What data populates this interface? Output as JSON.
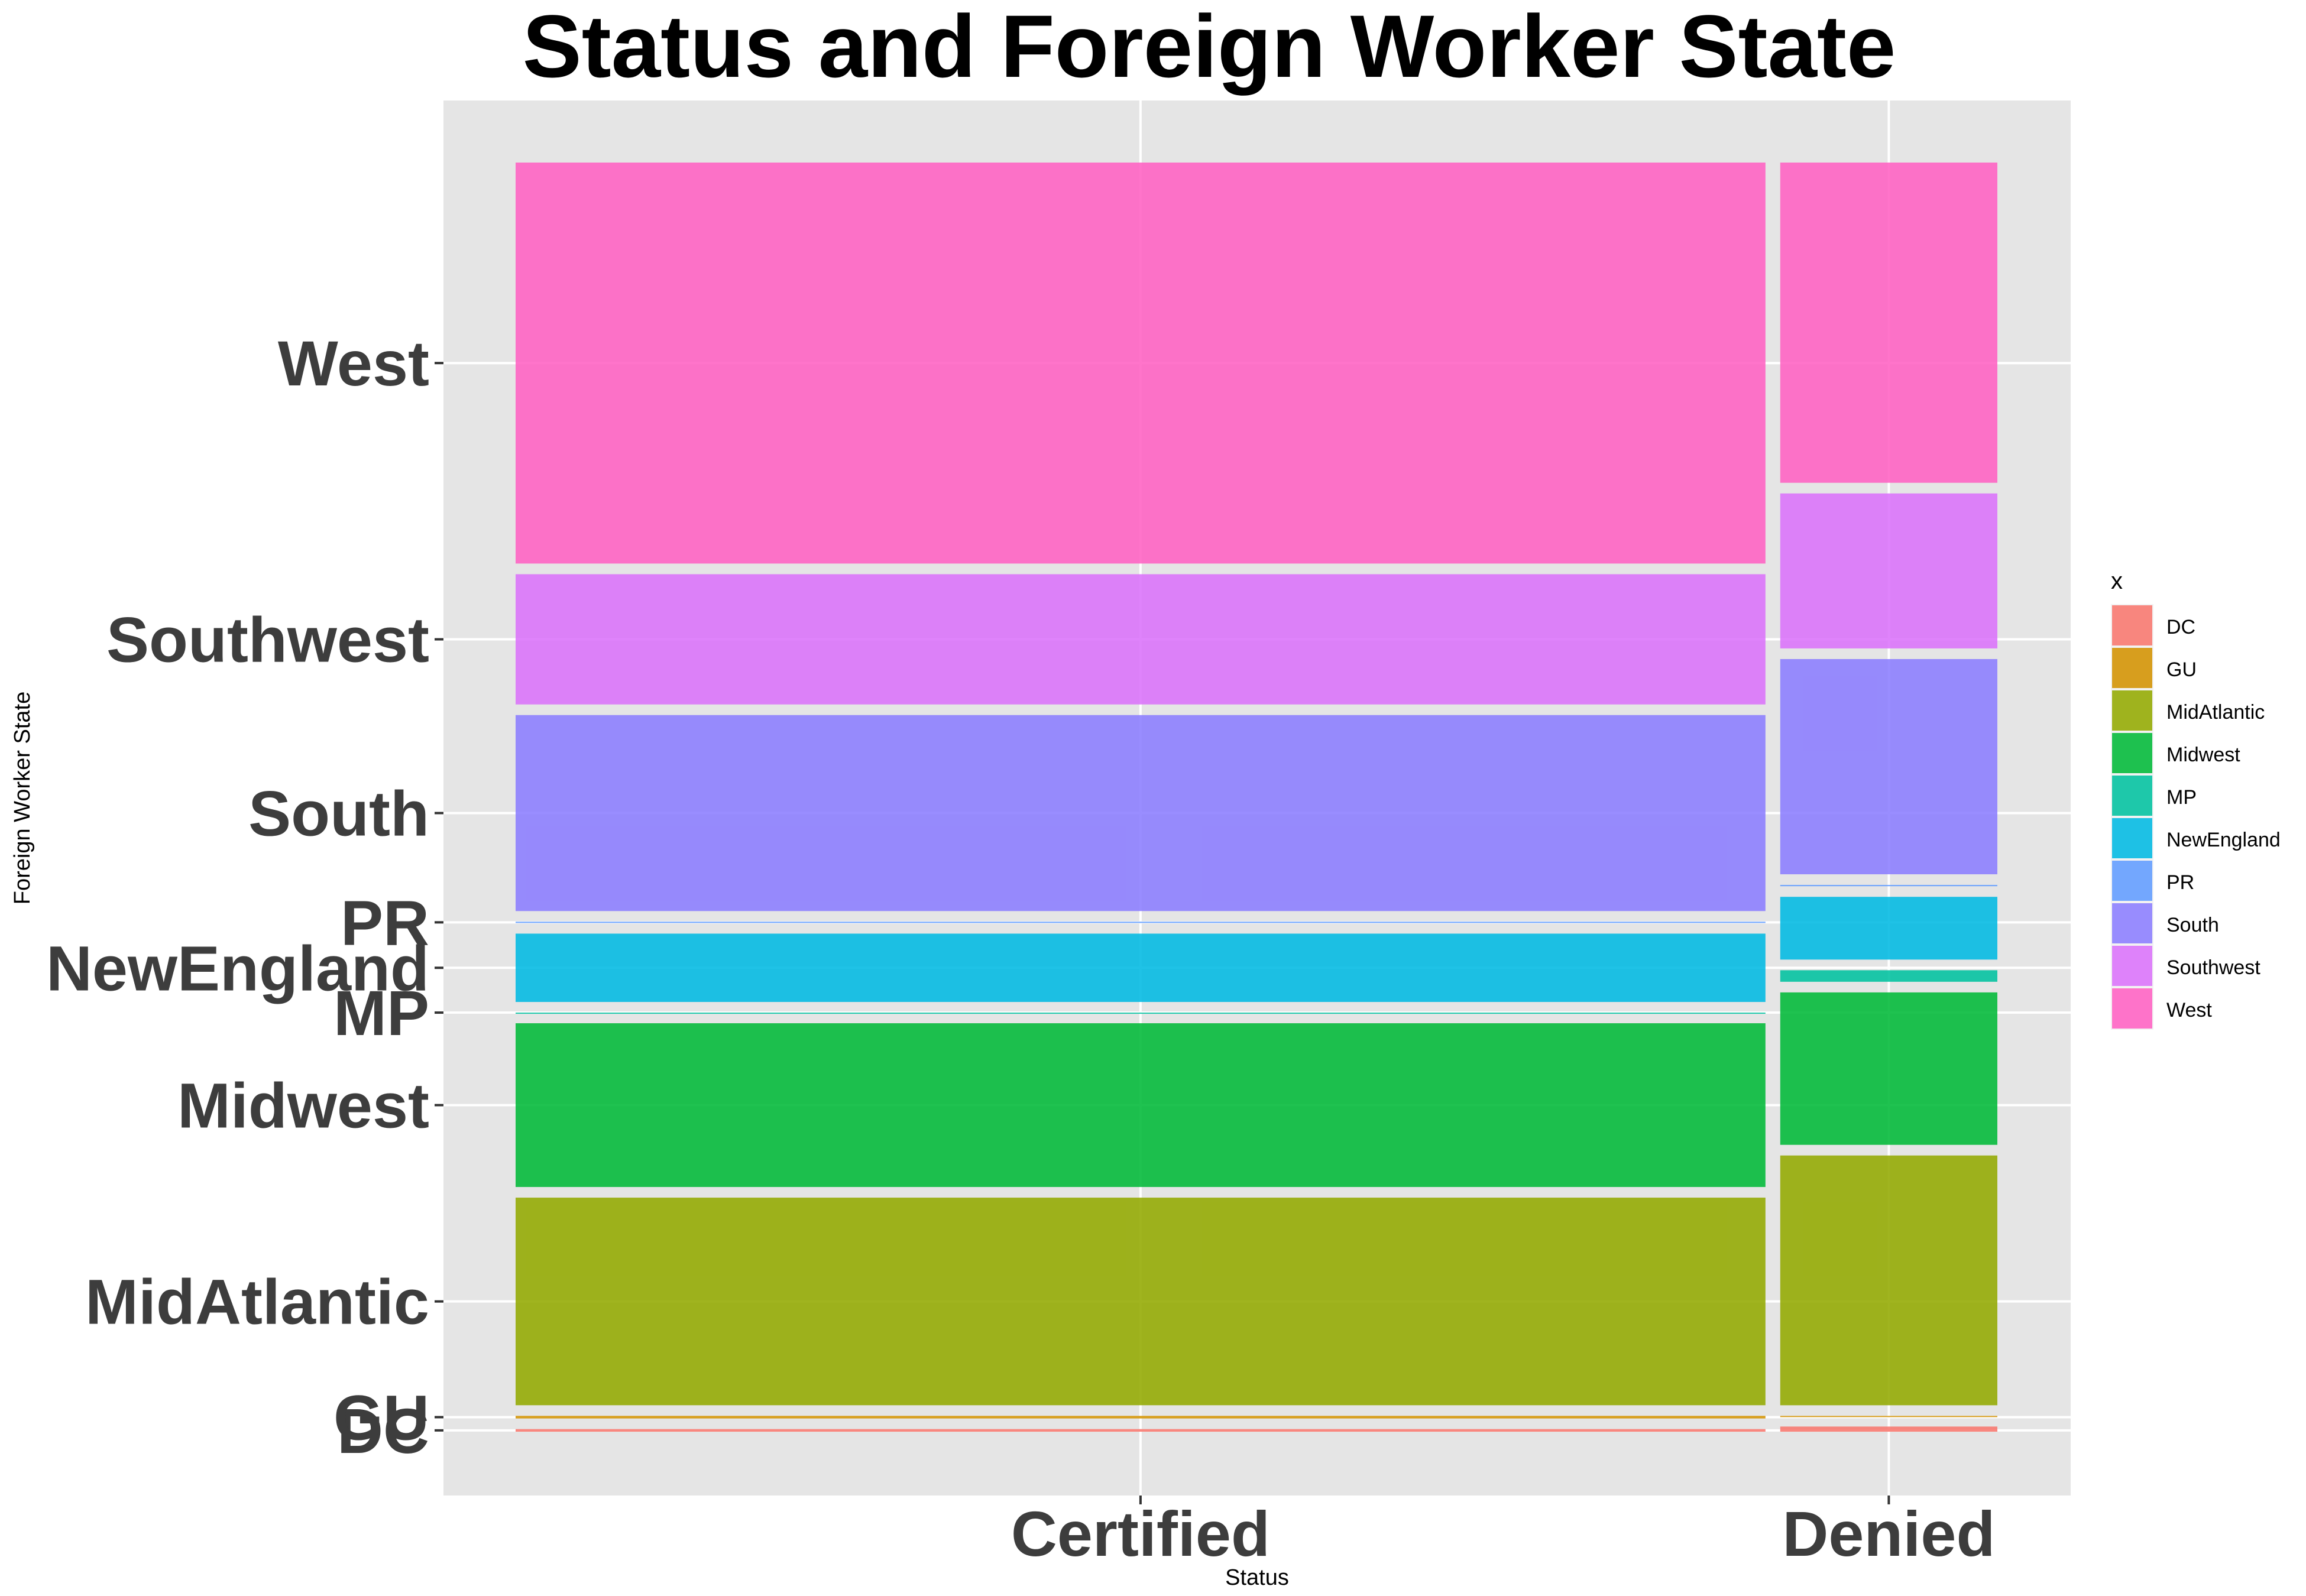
{
  "chart_data": {
    "type": "mosaic",
    "title": "Status and Foreign Worker State",
    "xlabel": "Status",
    "ylabel": "Foreign Worker State",
    "legend_title": "x",
    "legend_position": "right",
    "grid": true,
    "columns": [
      "Certified",
      "Denied"
    ],
    "column_shares": [
      0.852,
      0.148
    ],
    "categories": [
      "DC",
      "GU",
      "MidAtlantic",
      "Midwest",
      "MP",
      "NewEngland",
      "PR",
      "South",
      "Southwest",
      "West"
    ],
    "colors": {
      "DC": "#F8766D",
      "GU": "#D39200",
      "MidAtlantic": "#93AA00",
      "Midwest": "#00BA38",
      "MP": "#00C19F",
      "NewEngland": "#00B9E3",
      "PR": "#619CFF",
      "South": "#8B7DFF",
      "Southwest": "#DB72FB",
      "West": "#FF61C3"
    },
    "proportions": {
      "Certified": {
        "DC": 0.002,
        "GU": 0.002,
        "MidAtlantic": 0.161,
        "Midwest": 0.127,
        "MP": 0.0,
        "NewEngland": 0.053,
        "PR": 0.001,
        "South": 0.152,
        "Southwest": 0.101,
        "West": 0.311
      },
      "Denied": {
        "DC": 0.004,
        "GU": 0.0,
        "MidAtlantic": 0.195,
        "Midwest": 0.119,
        "MP": 0.009,
        "NewEngland": 0.049,
        "PR": 0.001,
        "South": 0.168,
        "Southwest": 0.121,
        "West": 0.25
      }
    }
  }
}
